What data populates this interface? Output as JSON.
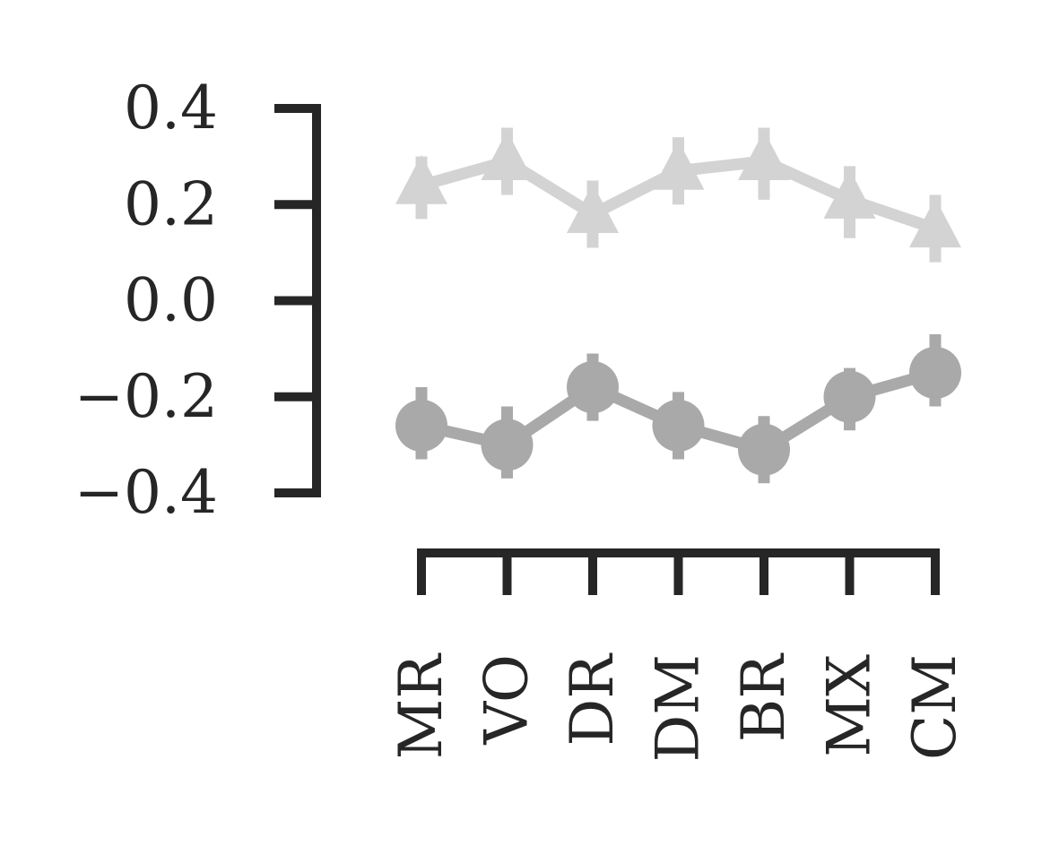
{
  "chart_data": {
    "type": "line",
    "categories": [
      "MR",
      "VO",
      "DR",
      "DM",
      "BR",
      "MX",
      "CM"
    ],
    "yticks": [
      0.4,
      0.2,
      0.0,
      -0.2,
      -0.4
    ],
    "ytick_labels": [
      "0.4",
      "0.2",
      "0.0",
      "−0.2",
      "−0.4"
    ],
    "ylim": [
      -0.4,
      0.4
    ],
    "grid": false,
    "series": [
      {
        "marker": "triangle",
        "color": "#d3d3d3",
        "values": [
          0.24,
          0.29,
          0.18,
          0.27,
          0.29,
          0.21,
          0.15
        ],
        "err_low": [
          0.17,
          0.22,
          0.11,
          0.2,
          0.21,
          0.13,
          0.08
        ],
        "err_high": [
          0.3,
          0.36,
          0.25,
          0.34,
          0.36,
          0.28,
          0.22
        ]
      },
      {
        "marker": "circle",
        "color": "#a9a9a9",
        "values": [
          -0.26,
          -0.3,
          -0.18,
          -0.26,
          -0.31,
          -0.2,
          -0.15
        ],
        "err_low": [
          -0.33,
          -0.37,
          -0.25,
          -0.33,
          -0.38,
          -0.27,
          -0.22
        ],
        "err_high": [
          -0.18,
          -0.22,
          -0.11,
          -0.19,
          -0.24,
          -0.14,
          -0.07
        ]
      }
    ]
  }
}
